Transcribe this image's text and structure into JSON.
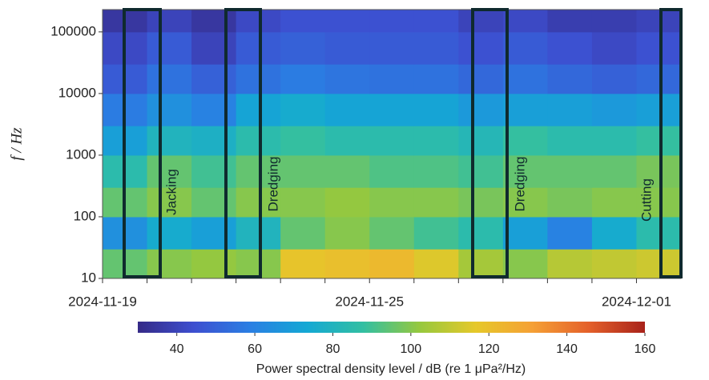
{
  "chart_data": {
    "type": "heatmap",
    "y_label": "f / Hz",
    "colorbar_label": "Power spectral density level / dB (re 1 μPa²/Hz)",
    "categories": [
      "2024-11-19",
      null,
      null,
      null,
      null,
      null,
      "2024-11-25",
      null,
      null,
      null,
      null,
      null,
      "2024-12-01"
    ],
    "ybins": [
      10,
      30,
      100,
      300,
      1000,
      3000,
      10000,
      30000,
      100000,
      230000
    ],
    "ylim": [
      10,
      230000
    ],
    "yticks": [
      10,
      100,
      1000,
      10000,
      100000
    ],
    "ylog": true,
    "z": [
      [
        95,
        100,
        102,
        100,
        118,
        120,
        122,
        115,
        105,
        100,
        108,
        110,
        112
      ],
      [
        65,
        75,
        70,
        80,
        95,
        100,
        95,
        90,
        85,
        70,
        60,
        75,
        85
      ],
      [
        95,
        100,
        95,
        100,
        100,
        102,
        100,
        100,
        98,
        100,
        98,
        100,
        100
      ],
      [
        85,
        95,
        90,
        95,
        95,
        95,
        92,
        92,
        90,
        95,
        95,
        95,
        98
      ],
      [
        70,
        80,
        78,
        85,
        88,
        85,
        85,
        85,
        82,
        88,
        85,
        85,
        88
      ],
      [
        58,
        65,
        60,
        72,
        75,
        72,
        72,
        72,
        68,
        70,
        70,
        68,
        70
      ],
      [
        48,
        55,
        50,
        55,
        58,
        56,
        55,
        55,
        52,
        55,
        52,
        50,
        52
      ],
      [
        42,
        48,
        40,
        48,
        50,
        48,
        48,
        48,
        45,
        48,
        45,
        42,
        45
      ],
      [
        35,
        40,
        35,
        42,
        45,
        45,
        45,
        45,
        40,
        42,
        38,
        38,
        40
      ]
    ],
    "clim": [
      30,
      160
    ],
    "cticks": [
      40,
      60,
      80,
      100,
      120,
      140,
      160
    ],
    "colormap": [
      "#352a87",
      "#3d4fd0",
      "#2a7fe3",
      "#14a8d4",
      "#32bfa2",
      "#96c83e",
      "#e6c82a",
      "#f5a035",
      "#e4602a",
      "#a8221a"
    ],
    "annotations": [
      {
        "label": "Jacking"
      },
      {
        "label": "Dredging"
      },
      {
        "label": "Dredging"
      },
      {
        "label": "Cutting"
      }
    ],
    "annotation_color": "#0f2a2e"
  }
}
